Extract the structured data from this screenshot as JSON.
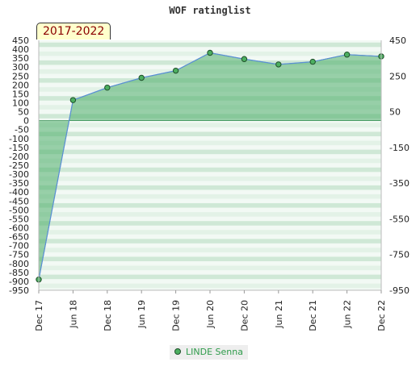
{
  "title": "WOF ratinglist",
  "period_label": "2017-2022",
  "legend": {
    "series_name": "LINDE Senna"
  },
  "colors": {
    "line": "#5b8fd6",
    "area": "#4cad6a",
    "marker": "#4caf60",
    "marker_edge": "#1f4f2a",
    "band_dark": "#cfe8d6",
    "band_light": "#f2f9f4"
  },
  "chart_data": {
    "type": "area",
    "title": "WOF ratinglist",
    "x": [
      "Dec 17",
      "Jun 18",
      "Dec 18",
      "Jun 19",
      "Dec 19",
      "Jun 20",
      "Dec 20",
      "Jun 21",
      "Dec 21",
      "Jun 22",
      "Dec 22"
    ],
    "series": [
      {
        "name": "LINDE Senna",
        "values": [
          -890,
          115,
          185,
          240,
          280,
          380,
          345,
          315,
          330,
          370,
          360
        ]
      }
    ],
    "ylim": [
      -950,
      450
    ],
    "left_ticks": [
      450,
      400,
      350,
      300,
      250,
      200,
      150,
      100,
      50,
      0,
      -50,
      -100,
      -150,
      -200,
      -250,
      -300,
      -350,
      -400,
      -450,
      -500,
      -550,
      -600,
      -650,
      -700,
      -750,
      -800,
      -850,
      -900,
      -950
    ],
    "right_ticks": [
      450,
      250,
      50,
      -150,
      -350,
      -550,
      -750,
      -950
    ],
    "grid": true,
    "legend_position": "bottom-center",
    "xlabel": "",
    "ylabel": ""
  }
}
